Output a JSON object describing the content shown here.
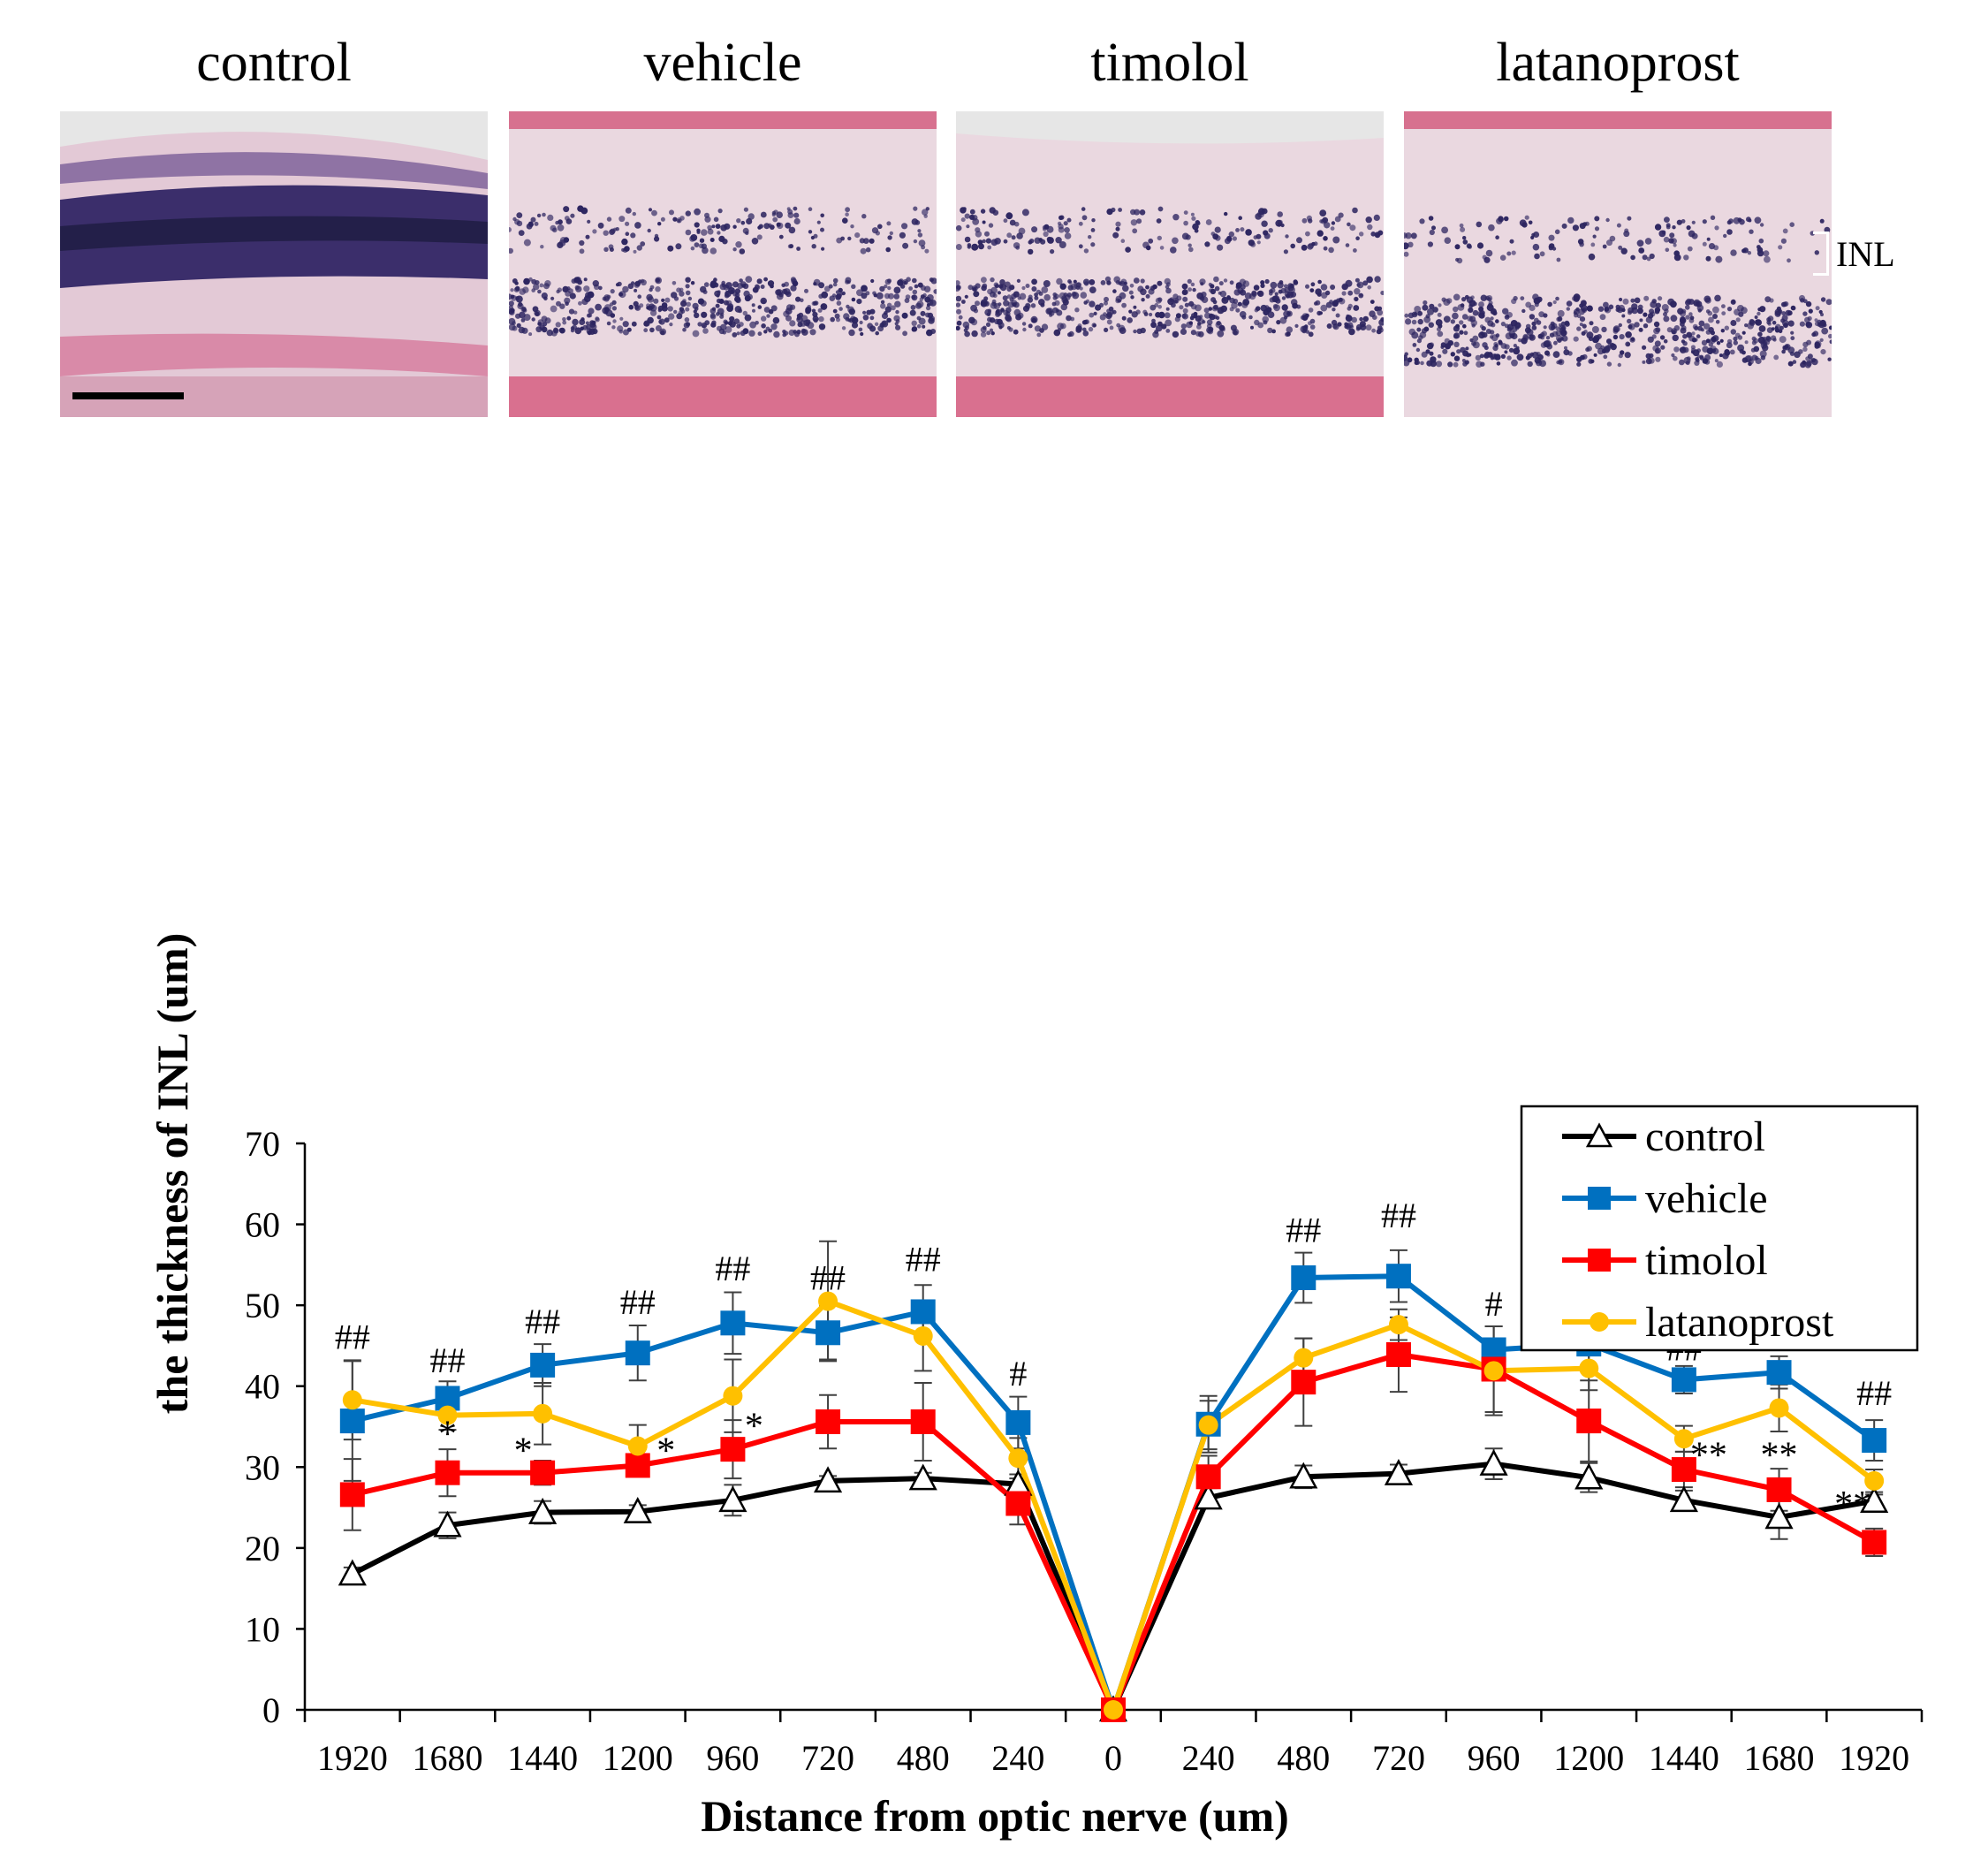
{
  "panels": [
    {
      "label": "control",
      "style": "normal"
    },
    {
      "label": "vehicle",
      "style": "damaged"
    },
    {
      "label": "timolol",
      "style": "damaged"
    },
    {
      "label": "latanoprost",
      "style": "damaged"
    }
  ],
  "inl_label": "INL",
  "chart_data": {
    "type": "line",
    "title": "",
    "xlabel": "Distance from optic nerve (um)",
    "ylabel": "the thickness of INL (um)",
    "ylim": [
      0,
      70
    ],
    "yticks": [
      "0",
      "10",
      "20",
      "30",
      "40",
      "50",
      "60",
      "70"
    ],
    "categories": [
      "1920",
      "1680",
      "1440",
      "1200",
      "960",
      "720",
      "480",
      "240",
      "0",
      "240",
      "480",
      "720",
      "960",
      "1200",
      "1440",
      "1680",
      "1920"
    ],
    "legend_position": "top-right",
    "series": [
      {
        "name": "control",
        "color": "#000000",
        "marker": "triangle-open",
        "values": [
          16.8,
          22.8,
          24.4,
          24.5,
          25.9,
          28.3,
          28.6,
          27.9,
          0,
          26.2,
          28.8,
          29.2,
          30.4,
          28.7,
          25.9,
          23.8,
          25.8
        ],
        "errors": [
          0.8,
          1.6,
          1.4,
          0.8,
          1.9,
          0.6,
          0.7,
          1.2,
          0,
          1.2,
          1.4,
          1.1,
          1.9,
          1.8,
          1.2,
          2.7,
          0.8
        ]
      },
      {
        "name": "vehicle",
        "color": "#0070c0",
        "marker": "square",
        "values": [
          35.7,
          38.5,
          42.6,
          44.1,
          47.8,
          46.6,
          49.2,
          35.5,
          0,
          35.3,
          53.4,
          53.6,
          44.5,
          45.2,
          40.8,
          41.7,
          33.3
        ],
        "errors": [
          7.4,
          2.1,
          2.6,
          3.4,
          3.8,
          3.3,
          3.3,
          3.2,
          0,
          3.5,
          3.1,
          3.2,
          2.9,
          2.7,
          1.7,
          2.0,
          2.5
        ]
      },
      {
        "name": "timolol",
        "color": "#ff0000",
        "marker": "square",
        "values": [
          26.6,
          29.3,
          29.3,
          30.2,
          32.2,
          35.6,
          35.6,
          25.5,
          0,
          28.8,
          40.5,
          43.9,
          42.1,
          35.7,
          29.7,
          27.2,
          20.7
        ],
        "errors": [
          4.4,
          2.9,
          1.5,
          1.0,
          3.6,
          3.3,
          4.8,
          2.6,
          0,
          2.6,
          5.4,
          4.6,
          5.3,
          5.0,
          2.2,
          2.6,
          1.7
        ]
      },
      {
        "name": "latanoprost",
        "color": "#ffc000",
        "marker": "circle",
        "values": [
          38.3,
          36.4,
          36.6,
          32.6,
          38.8,
          50.5,
          46.2,
          31.1,
          0,
          35.2,
          43.5,
          47.6,
          41.9,
          42.2,
          33.5,
          37.3,
          28.3
        ],
        "errors": [
          4.9,
          1.8,
          3.8,
          2.6,
          4.5,
          7.4,
          4.3,
          2.5,
          0,
          3.0,
          2.4,
          1.9,
          5.5,
          2.7,
          1.6,
          2.9,
          1.4
        ]
      }
    ],
    "annotations": [
      {
        "text": "##",
        "x_index": 0,
        "y": 44.6
      },
      {
        "text": "##",
        "x_index": 1,
        "y": 41.7
      },
      {
        "text": "##",
        "x_index": 2,
        "y": 46.5
      },
      {
        "text": "##",
        "x_index": 3,
        "y": 48.9
      },
      {
        "text": "##",
        "x_index": 4,
        "y": 53.1
      },
      {
        "text": "##",
        "x_index": 5,
        "y": 51.9
      },
      {
        "text": "##",
        "x_index": 6,
        "y": 54.2
      },
      {
        "text": "#",
        "x_index": 7,
        "y": 40.1
      },
      {
        "text": "##",
        "x_index": 10,
        "y": 57.8
      },
      {
        "text": "##",
        "x_index": 11,
        "y": 59.6
      },
      {
        "text": "#",
        "x_index": 12,
        "y": 48.7
      },
      {
        "text": "##",
        "x_index": 13,
        "y": 49.4
      },
      {
        "text": "##",
        "x_index": 14,
        "y": 43.2
      },
      {
        "text": "##",
        "x_index": 15,
        "y": 45.1
      },
      {
        "text": "##",
        "x_index": 16,
        "y": 37.7
      },
      {
        "text": "*",
        "x_index": 1,
        "y": 32.6,
        "dx": 0
      },
      {
        "text": "*",
        "x_index": 2,
        "y": 30.5,
        "dx": -22
      },
      {
        "text": "*",
        "x_index": 3,
        "y": 30.5,
        "dx": 32
      },
      {
        "text": "*",
        "x_index": 4,
        "y": 33.6,
        "dx": 24
      },
      {
        "text": "**",
        "x_index": 14,
        "y": 30.0,
        "dx": 28
      },
      {
        "text": "**",
        "x_index": 15,
        "y": 30.0,
        "dx": 0
      },
      {
        "text": "**",
        "x_index": 16,
        "y": 23.9,
        "dx": -24
      }
    ]
  }
}
